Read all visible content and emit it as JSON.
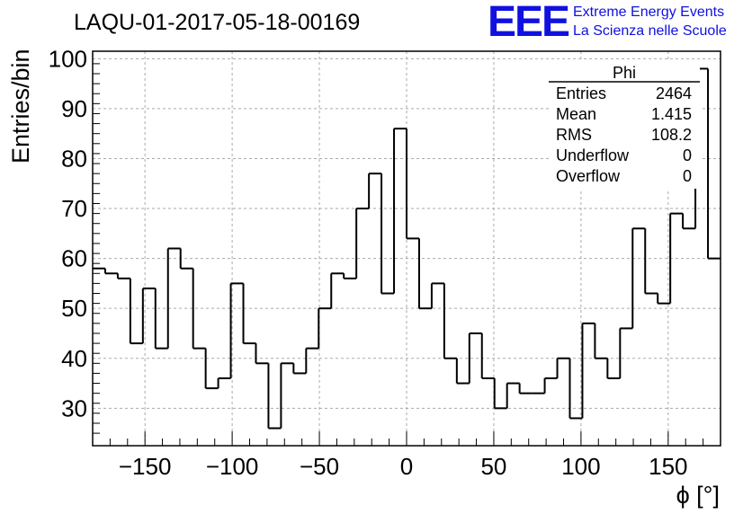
{
  "title": "LAQU-01-2017-05-18-00169",
  "logo": {
    "mark": "EEE",
    "line1": "Extreme Energy Events",
    "line2": "La Scienza nelle Scuole",
    "color": "#1010e0"
  },
  "stats_box": {
    "name": "Phi",
    "rows": [
      {
        "label": "Entries",
        "value": "2464"
      },
      {
        "label": "Mean",
        "value": "1.415"
      },
      {
        "label": "RMS",
        "value": "108.2"
      },
      {
        "label": "Underflow",
        "value": "0"
      },
      {
        "label": "Overflow",
        "value": "0"
      }
    ]
  },
  "chart_data": {
    "type": "bar",
    "style": "step-histogram",
    "title": "LAQU-01-2017-05-18-00169",
    "xlabel": "ϕ [°]",
    "ylabel": "Entries/bin",
    "xlim": [
      -180,
      180
    ],
    "ylim": [
      22.5,
      101.5
    ],
    "bin_width": 7.2,
    "x_ticks": [
      -150,
      -100,
      -50,
      0,
      50,
      100,
      150
    ],
    "x_tick_labels": [
      "−150",
      "−100",
      "−50",
      "0",
      "50",
      "100",
      "150"
    ],
    "y_ticks": [
      30,
      40,
      50,
      60,
      70,
      80,
      90,
      100
    ],
    "y_tick_labels": [
      "30",
      "40",
      "50",
      "60",
      "70",
      "80",
      "90",
      "100"
    ],
    "grid": true,
    "values": [
      58,
      57,
      56,
      43,
      54,
      42,
      62,
      58,
      42,
      34,
      36,
      55,
      43,
      39,
      26,
      39,
      37,
      42,
      50,
      57,
      56,
      70,
      77,
      53,
      86,
      64,
      50,
      55,
      40,
      35,
      45,
      36,
      30,
      35,
      33,
      33,
      36,
      40,
      28,
      47,
      40,
      36,
      46,
      66,
      53,
      51,
      69,
      66,
      98,
      60
    ]
  }
}
